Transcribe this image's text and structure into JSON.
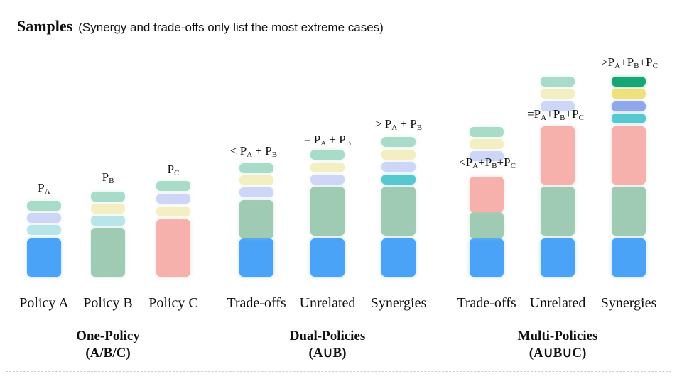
{
  "title": {
    "main": "Samples",
    "note": "(Synergy and trade-offs only list the most extreme cases)"
  },
  "colors": {
    "blue": "#4aa3f7",
    "green": "#9fcbb4",
    "pink": "#f7b1ad",
    "teal_light": "#b8e6e8",
    "lavender": "#cdd6f7",
    "cream": "#f4efc3",
    "mint": "#a9dcc8",
    "cyan": "#57c8cf",
    "periwinkle": "#8fa8ec",
    "yellow": "#eee07a",
    "emerald": "#16a774"
  },
  "groups": [
    {
      "title_line1": "One-Policy",
      "title_line2": "(A/B/C)"
    },
    {
      "title_line1": "Dual-Policies",
      "title_line2": "(A∪B)"
    },
    {
      "title_line1": "Multi-Policies",
      "title_line2": "(A∪B∪C)"
    }
  ],
  "stacks": [
    {
      "label": "Policy A",
      "formula": {
        "prefix": "",
        "terms": [
          "A"
        ]
      }
    },
    {
      "label": "Policy B",
      "formula": {
        "prefix": "",
        "terms": [
          "B"
        ]
      }
    },
    {
      "label": "Policy C",
      "formula": {
        "prefix": "",
        "terms": [
          "C"
        ]
      }
    },
    {
      "label": "Trade-offs",
      "formula": {
        "prefix": "< ",
        "terms": [
          "A",
          "B"
        ]
      }
    },
    {
      "label": "Unrelated",
      "formula": {
        "prefix": "= ",
        "terms": [
          "A",
          "B"
        ]
      }
    },
    {
      "label": "Synergies",
      "formula": {
        "prefix": "> ",
        "terms": [
          "A",
          "B"
        ]
      }
    },
    {
      "label": "Trade-offs",
      "formula": {
        "prefix": "<",
        "terms": [
          "A",
          "B",
          "C"
        ]
      }
    },
    {
      "label": "Unrelated",
      "formula": {
        "prefix": "=",
        "terms": [
          "A",
          "B",
          "C"
        ]
      }
    },
    {
      "label": "Synergies",
      "formula": {
        "prefix": ">",
        "terms": [
          "A",
          "B",
          "C"
        ]
      }
    }
  ]
}
